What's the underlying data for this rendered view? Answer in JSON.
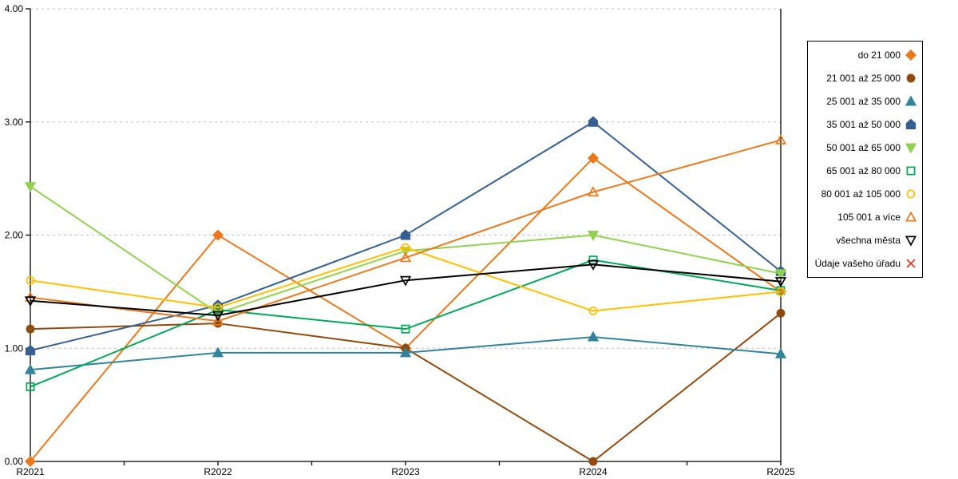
{
  "chart_data": {
    "type": "line",
    "title": "",
    "xlabel": "",
    "ylabel": "",
    "categories": [
      "R2021",
      "R2022",
      "R2023",
      "R2024",
      "R2025"
    ],
    "ylim": [
      0,
      4
    ],
    "yticks": [
      0,
      1,
      2,
      3,
      4
    ],
    "ytick_labels": [
      "0.00",
      "1.00",
      "2.00",
      "3.00",
      "4.00"
    ],
    "grid": "horizontal-dashed",
    "gridline_color": "#BDBDBD",
    "axis_color": "#000000",
    "legend_position": "right-outside",
    "x_minor_ticks_per_interval": 1,
    "series": [
      {
        "name": "do 21 000",
        "color": "#E8791E",
        "marker": "diamond",
        "fill": true,
        "values": [
          0.0,
          2.0,
          1.0,
          2.68,
          1.5
        ]
      },
      {
        "name": "21 001 až 25 000",
        "color": "#8F4B0E",
        "marker": "circle",
        "fill": true,
        "values": [
          1.17,
          1.22,
          1.0,
          0.0,
          1.31
        ]
      },
      {
        "name": "25 001 až 35 000",
        "color": "#31849B",
        "marker": "triangle-up",
        "fill": true,
        "values": [
          0.81,
          0.96,
          0.96,
          1.1,
          0.95
        ]
      },
      {
        "name": "35 001 až 50 000",
        "color": "#365F91",
        "marker": "pentagon",
        "fill": true,
        "values": [
          0.98,
          1.38,
          2.0,
          3.0,
          1.68
        ]
      },
      {
        "name": "50 001 až 65 000",
        "color": "#92D050",
        "marker": "triangle-down",
        "fill": true,
        "values": [
          2.43,
          1.31,
          1.86,
          2.0,
          1.66
        ]
      },
      {
        "name": "65 001 až 80 000",
        "color": "#00A65A",
        "marker": "square",
        "fill": false,
        "values": [
          0.66,
          1.34,
          1.17,
          1.78,
          1.51
        ]
      },
      {
        "name": "80 001 až 105 000",
        "color": "#FFC000",
        "marker": "circle",
        "fill": false,
        "values": [
          1.6,
          1.36,
          1.89,
          1.33,
          1.5
        ]
      },
      {
        "name": "105 001 a více",
        "color": "#E8791E",
        "marker": "triangle-up",
        "fill": false,
        "values": [
          1.45,
          1.24,
          1.8,
          2.38,
          2.84
        ]
      },
      {
        "name": "všechna města",
        "color": "#000000",
        "marker": "triangle-down",
        "fill": false,
        "values": [
          1.42,
          1.29,
          1.6,
          1.74,
          1.59
        ]
      },
      {
        "name": "Údaje vašeho úřadu",
        "color": "#E0301E",
        "marker": "x",
        "fill": false,
        "values": []
      }
    ]
  }
}
